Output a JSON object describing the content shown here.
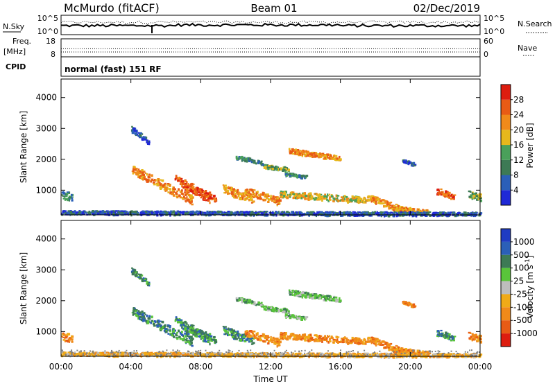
{
  "header": {
    "station": "McMurdo (fitACF)",
    "beam": "Beam 01",
    "date": "02/Dec/2019"
  },
  "top_panels": {
    "nsky_label": "N.Sky",
    "nsearch_label": "N.Search",
    "nsky_ticks": [
      "10^5",
      "10^0"
    ],
    "nsearch_ticks": [
      "10^5",
      "10^0"
    ],
    "freq_label": "Freq.",
    "freq_unit": "[MHz]",
    "freq_ticks": [
      "18",
      "8"
    ],
    "nave_label": "Nave",
    "nave_ticks": [
      "60",
      "0"
    ],
    "cpid_label": "CPID",
    "cpid_value": "normal (fast) 151 RF"
  },
  "colors": {
    "power": [
      "#1f29d6",
      "#2b5fb8",
      "#3d7a55",
      "#4aa05a",
      "#e6b81c",
      "#f08a1a",
      "#e85b15",
      "#dd1d0f"
    ],
    "velocity": [
      "#1f3cc2",
      "#2b5fb8",
      "#3d7a55",
      "#59c43a",
      "#bdbdbd",
      "#f0aa18",
      "#f08a1a",
      "#e85b15",
      "#dd1d0f"
    ],
    "ground": "#7f7f7f"
  },
  "chart_data": [
    {
      "type": "heatmap",
      "ylabel": "Slant Range [km]",
      "x_range": [
        0,
        24
      ],
      "ylim": [
        200,
        4600
      ],
      "yticks": [
        "1000",
        "2000",
        "3000",
        "4000"
      ],
      "colorbar": {
        "label": "Power [dB]",
        "ticks": [
          "4",
          "8",
          "12",
          "16",
          "20",
          "24",
          "28"
        ],
        "range": [
          0,
          32
        ]
      }
    },
    {
      "type": "heatmap",
      "ylabel": "Slant Range [km]",
      "x_range": [
        0,
        24
      ],
      "ylim": [
        200,
        4600
      ],
      "yticks": [
        "1000",
        "2000",
        "3000",
        "4000"
      ],
      "colorbar": {
        "label": "Velocity [m s^-1]",
        "ticks": [
          "1000",
          "500",
          "100",
          "25",
          "-25",
          "-100",
          "-500",
          "-1000"
        ]
      }
    }
  ],
  "x_axis": {
    "label": "Time UT",
    "ticks": [
      "00:00",
      "04:00",
      "08:00",
      "12:00",
      "16:00",
      "20:00",
      "00:00"
    ]
  }
}
